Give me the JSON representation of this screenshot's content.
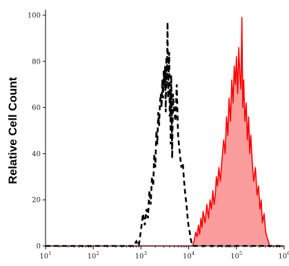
{
  "chart_data": {
    "type": "area",
    "title": "",
    "xlabel": "",
    "ylabel": "Relative Cell Count",
    "xscale": "log",
    "xlim": [
      10,
      1000000
    ],
    "ylim": [
      0,
      100
    ],
    "x_ticks": [
      {
        "base": "10",
        "exp": "1"
      },
      {
        "base": "10",
        "exp": "2"
      },
      {
        "base": "10",
        "exp": "3"
      },
      {
        "base": "10",
        "exp": "4"
      },
      {
        "base": "10",
        "exp": "5"
      },
      {
        "base": "10",
        "exp": "6"
      }
    ],
    "y_ticks": [
      "0",
      "20",
      "40",
      "60",
      "80",
      "100"
    ],
    "grid": false,
    "legend": "none",
    "series": [
      {
        "style": "dashed black line",
        "color": "#000000",
        "filled": false,
        "x": [
          10,
          700,
          800,
          900,
          1000,
          1100,
          1200,
          1300,
          1400,
          1500,
          1600,
          1700,
          1800,
          1900,
          2000,
          2100,
          2200,
          2300,
          2400,
          2500,
          2600,
          2700,
          2800,
          2900,
          3000,
          3100,
          3200,
          3300,
          3400,
          3500,
          3600,
          3700,
          3800,
          3900,
          4000,
          4100,
          4200,
          4300,
          4400,
          4500,
          4700,
          5000,
          5300,
          5600,
          6000,
          6500,
          7000,
          7500,
          8000,
          8500,
          9000,
          9500,
          10000,
          10500,
          11000,
          12000,
          1000000
        ],
        "y": [
          0,
          0,
          2,
          0,
          7,
          14,
          9,
          16,
          12,
          24,
          18,
          30,
          26,
          40,
          34,
          50,
          44,
          58,
          52,
          62,
          66,
          60,
          72,
          64,
          76,
          68,
          78,
          58,
          82,
          70,
          97,
          64,
          74,
          84,
          56,
          68,
          44,
          74,
          60,
          38,
          66,
          58,
          54,
          70,
          48,
          40,
          34,
          36,
          28,
          22,
          18,
          12,
          8,
          6,
          3,
          0,
          0
        ]
      },
      {
        "style": "red filled area",
        "color": "#ff0000",
        "fill": "#fc9d9d",
        "filled": true,
        "x": [
          10,
          12000,
          13000,
          14000,
          15000,
          16000,
          17000,
          18000,
          19000,
          20000,
          22000,
          24000,
          26000,
          28000,
          30000,
          32000,
          34000,
          36000,
          38000,
          40000,
          43000,
          46000,
          50000,
          54000,
          58000,
          62000,
          66000,
          70000,
          75000,
          80000,
          85000,
          90000,
          95000,
          100000,
          106000,
          112000,
          118000,
          124000,
          130000,
          136000,
          142000,
          150000,
          160000,
          170000,
          180000,
          190000,
          200000,
          215000,
          230000,
          250000,
          270000,
          290000,
          310000,
          330000,
          350000,
          380000,
          410000,
          450000,
          500000,
          1000000
        ],
        "y": [
          0,
          0,
          2,
          6,
          4,
          9,
          5,
          12,
          8,
          15,
          10,
          18,
          12,
          20,
          16,
          24,
          18,
          22,
          30,
          26,
          34,
          28,
          38,
          46,
          40,
          56,
          48,
          64,
          54,
          72,
          62,
          78,
          70,
          82,
          66,
          86,
          74,
          68,
          99,
          60,
          72,
          54,
          62,
          46,
          56,
          40,
          48,
          36,
          28,
          34,
          22,
          26,
          16,
          20,
          10,
          14,
          6,
          3,
          0,
          0
        ]
      }
    ]
  }
}
